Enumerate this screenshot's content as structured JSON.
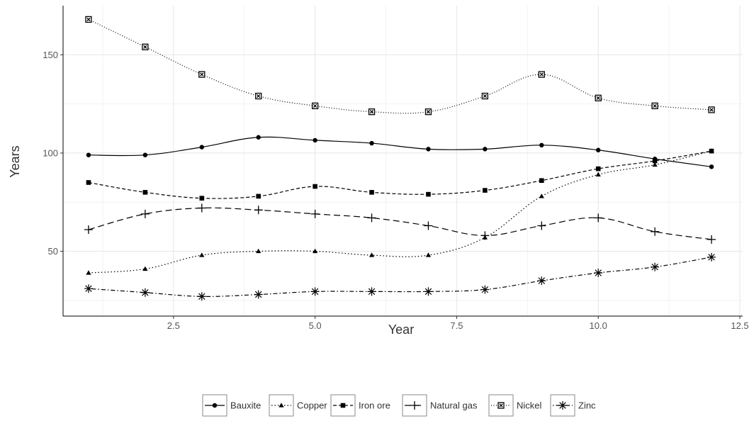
{
  "chart_data": {
    "type": "line",
    "title": "",
    "xlabel": "Year",
    "ylabel": "Years",
    "xlim": [
      0.55,
      12.55
    ],
    "ylim": [
      17,
      175
    ],
    "x_ticks": [
      2.5,
      5.0,
      7.5,
      10.0,
      12.5
    ],
    "x_tick_labels": [
      "2.5",
      "5.0",
      "7.5",
      "10.0",
      "12.5"
    ],
    "y_ticks": [
      50,
      100,
      150
    ],
    "y_tick_labels": [
      "50",
      "100",
      "150"
    ],
    "grid": true,
    "legend_position": "bottom",
    "x": [
      1,
      2,
      3,
      4,
      5,
      6,
      7,
      8,
      9,
      10,
      11,
      12
    ],
    "series": [
      {
        "name": "Bauxite",
        "marker": "circle",
        "dash": "solid",
        "values": [
          99,
          99,
          103,
          108,
          106.5,
          105,
          102,
          102,
          104,
          101.5,
          97,
          93
        ]
      },
      {
        "name": "Copper",
        "marker": "triangle",
        "dash": "dotted",
        "values": [
          39,
          41,
          48,
          50,
          50,
          48,
          48,
          57,
          78,
          89,
          94,
          101
        ]
      },
      {
        "name": "Iron ore",
        "marker": "square",
        "dash": "dashed",
        "values": [
          85,
          80,
          77,
          78,
          83,
          80,
          79,
          81,
          86,
          92,
          96,
          101
        ]
      },
      {
        "name": "Natural gas",
        "marker": "plus",
        "dash": "longdash",
        "values": [
          61,
          69,
          72,
          71,
          69,
          67,
          63,
          58,
          63,
          67,
          60,
          56
        ]
      },
      {
        "name": "Nickel",
        "marker": "boxed-x",
        "dash": "dotted-fine",
        "values": [
          168,
          154,
          140,
          129,
          124,
          121,
          121,
          129,
          140,
          128,
          124,
          122
        ]
      },
      {
        "name": "Zinc",
        "marker": "asterisk",
        "dash": "dotdash",
        "values": [
          31,
          29,
          27,
          28,
          29.5,
          29.5,
          29.5,
          30.5,
          35,
          39,
          42,
          47
        ]
      }
    ]
  }
}
